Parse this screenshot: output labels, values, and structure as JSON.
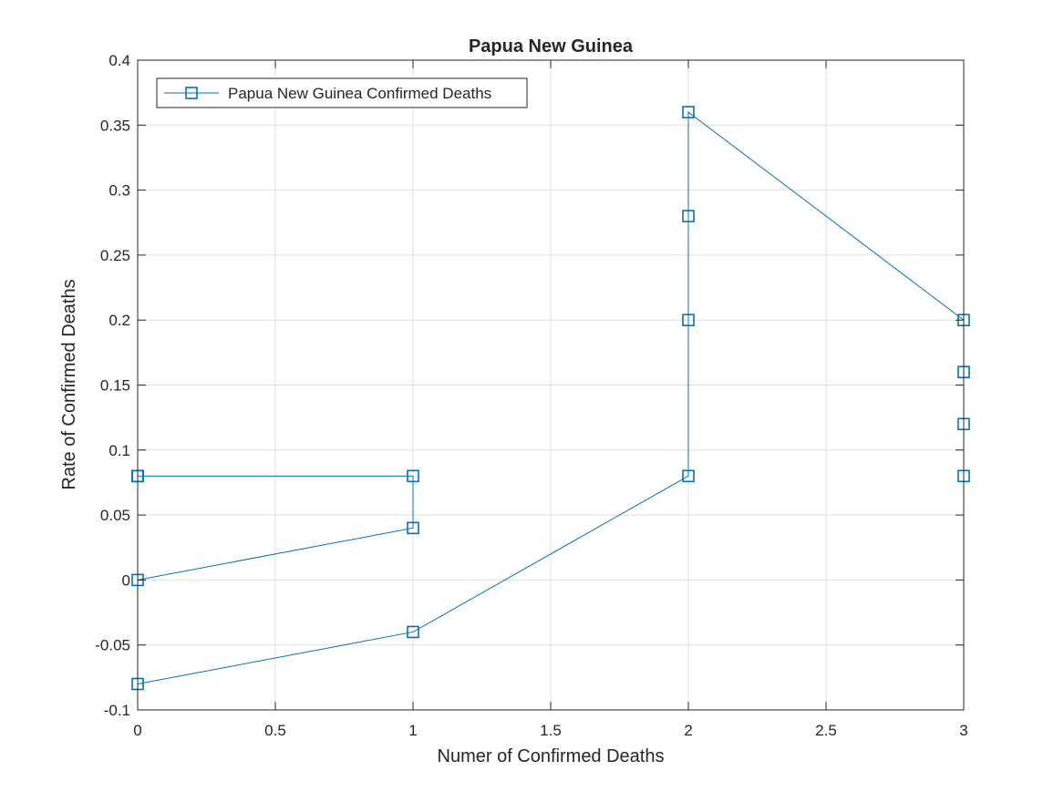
{
  "chart_data": {
    "type": "line",
    "title": "Papua New Guinea",
    "xlabel": "Numer of Confirmed Deaths",
    "ylabel": "Rate of Confirmed Deaths",
    "xlim": [
      0,
      3
    ],
    "ylim": [
      -0.1,
      0.4
    ],
    "xticks": [
      0,
      0.5,
      1,
      1.5,
      2,
      2.5,
      3
    ],
    "xtick_labels": [
      "0",
      "0.5",
      "1",
      "1.5",
      "2",
      "2.5",
      "3"
    ],
    "yticks": [
      -0.1,
      -0.05,
      0,
      0.05,
      0.1,
      0.15,
      0.2,
      0.25,
      0.3,
      0.35,
      0.4
    ],
    "ytick_labels": [
      "-0.1",
      "-0.05",
      "0",
      "0.05",
      "0.1",
      "0.15",
      "0.2",
      "0.25",
      "0.3",
      "0.35",
      "0.4"
    ],
    "grid": true,
    "legend_position": "top-left",
    "series": [
      {
        "name": "Papua New Guinea Confirmed Deaths",
        "color": "#0072BD",
        "marker": "square",
        "x": [
          0,
          0,
          0,
          1,
          1,
          0,
          0,
          1,
          2,
          2,
          2,
          2,
          3,
          3,
          3,
          3
        ],
        "y": [
          0.08,
          0.08,
          0.08,
          0.08,
          0.04,
          0,
          -0.08,
          -0.04,
          0.08,
          0.2,
          0.28,
          0.36,
          0.2,
          0.16,
          0.12,
          0.08
        ]
      }
    ]
  }
}
